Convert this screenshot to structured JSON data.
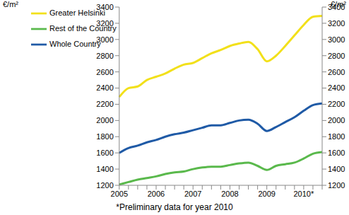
{
  "chart_data": {
    "type": "line",
    "ylabel": "€/m²",
    "y2label": "€/m²",
    "caption": "*Preliminary data for year 2010",
    "categories": [
      "2005",
      null,
      null,
      null,
      "2006",
      null,
      null,
      null,
      "2007",
      null,
      null,
      null,
      "2008",
      null,
      null,
      null,
      "2009",
      null,
      null,
      null,
      "2010*",
      null,
      null
    ],
    "series": [
      {
        "name": "Greater Helsinki",
        "color": "#f2e01a",
        "values": [
          2290,
          2400,
          2420,
          2500,
          2540,
          2580,
          2640,
          2690,
          2710,
          2770,
          2830,
          2870,
          2920,
          2950,
          2970,
          2880,
          2730,
          2800,
          2920,
          3050,
          3180,
          3280,
          3290
        ]
      },
      {
        "name": "Whole Country",
        "color": "#1f5aa6",
        "values": [
          1600,
          1660,
          1690,
          1730,
          1760,
          1800,
          1830,
          1850,
          1880,
          1910,
          1940,
          1940,
          1970,
          2000,
          2010,
          1960,
          1870,
          1920,
          1980,
          2040,
          2120,
          2190,
          2210
        ]
      },
      {
        "name": "Rest of the Country",
        "color": "#5ab94c",
        "values": [
          1210,
          1240,
          1270,
          1290,
          1310,
          1340,
          1360,
          1370,
          1400,
          1420,
          1430,
          1430,
          1450,
          1470,
          1480,
          1440,
          1390,
          1440,
          1460,
          1480,
          1530,
          1590,
          1610
        ]
      }
    ],
    "ylim": [
      1200,
      3400
    ],
    "yticks": [
      1200,
      1400,
      1600,
      1800,
      2000,
      2200,
      2400,
      2600,
      2800,
      3000,
      3200,
      3400
    ],
    "y2lim": [
      1200,
      3400
    ],
    "y2ticks": [
      1200,
      1400,
      1600,
      1800,
      2000,
      2200,
      2400,
      2600,
      2800,
      3000,
      3200,
      3400
    ],
    "grid": false,
    "legend": "upper left"
  }
}
